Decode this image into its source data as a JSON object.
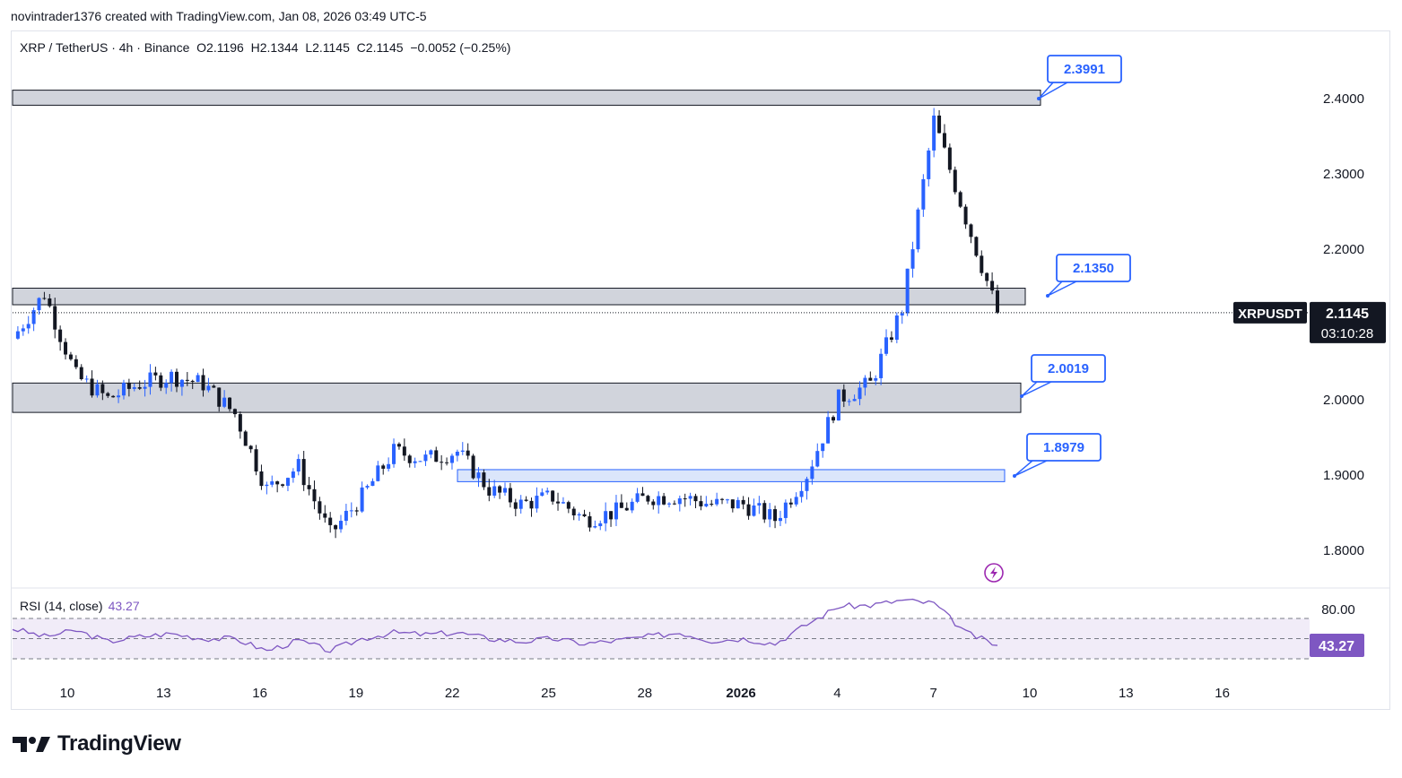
{
  "header": {
    "credit": "novintrader1376 created with TradingView.com, Jan 08, 2026 03:49 UTC-5"
  },
  "legend": {
    "symbol": "XRP / TetherUS · 4h · Binance",
    "open": "O2.1196",
    "high": "H2.1344",
    "low": "L2.1145",
    "close": "C2.1145",
    "change": "−0.0052 (−0.25%)"
  },
  "rsi": {
    "label": "RSI (14, close)",
    "value": "43.27",
    "axis_label": "80.00",
    "badge": "43.27"
  },
  "price_badge": {
    "symbol": "XRPUSDT",
    "price": "2.1145",
    "countdown": "03:10:28"
  },
  "footer": {
    "brand": "TradingView"
  },
  "colors": {
    "up": "#2962ff",
    "down": "#131722",
    "rsi": "#7e57c2",
    "zone": "#d1d4dc",
    "blue_zone": "#dbe6fb",
    "callout": "#2962ff"
  },
  "chart_data": {
    "type": "candlestick",
    "symbol": "XRPUSDT",
    "timeframe": "4h",
    "y_ticks": [
      "2.4000",
      "2.3000",
      "2.2000",
      "2.0000",
      "1.9000",
      "1.8000"
    ],
    "x_ticks": [
      "10",
      "13",
      "16",
      "19",
      "22",
      "25",
      "28",
      "2026",
      "4",
      "7",
      "10",
      "13",
      "16"
    ],
    "levels": [
      {
        "label": "2.3991",
        "low": 2.39,
        "high": 2.41
      },
      {
        "label": "2.1350",
        "low": 2.125,
        "high": 2.147
      },
      {
        "label": "2.0019",
        "low": 1.982,
        "high": 2.021
      },
      {
        "label": "1.8979",
        "low": 1.89,
        "high": 1.906
      }
    ],
    "last_price": 2.1145,
    "price_path": [
      [
        "Dec 8",
        2.08
      ],
      [
        "Dec 9",
        2.14
      ],
      [
        "Dec 10",
        2.03
      ],
      [
        "Dec 11",
        2.0
      ],
      [
        "Dec 12",
        2.02
      ],
      [
        "Dec 13",
        2.03
      ],
      [
        "Dec 14",
        2.02
      ],
      [
        "Dec 15",
        1.98
      ],
      [
        "Dec 16",
        1.88
      ],
      [
        "Dec 17",
        1.91
      ],
      [
        "Dec 18",
        1.82
      ],
      [
        "Dec 19",
        1.87
      ],
      [
        "Dec 20",
        1.93
      ],
      [
        "Dec 21",
        1.92
      ],
      [
        "Dec 22",
        1.93
      ],
      [
        "Dec 23",
        1.88
      ],
      [
        "Dec 24",
        1.86
      ],
      [
        "Dec 25",
        1.87
      ],
      [
        "Dec 26",
        1.84
      ],
      [
        "Dec 27",
        1.85
      ],
      [
        "Dec 28",
        1.87
      ],
      [
        "Dec 29",
        1.87
      ],
      [
        "Dec 30",
        1.86
      ],
      [
        "Dec 31",
        1.86
      ],
      [
        "Jan 1",
        1.84
      ],
      [
        "Jan 2",
        1.9
      ],
      [
        "Jan 3",
        2.0
      ],
      [
        "Jan 4",
        2.02
      ],
      [
        "Jan 5",
        2.12
      ],
      [
        "Jan 6",
        2.37
      ],
      [
        "Jan 7",
        2.24
      ],
      [
        "Jan 8",
        2.1145
      ]
    ],
    "rsi_path": [
      60,
      52,
      58,
      47,
      52,
      55,
      50,
      50,
      38,
      48,
      38,
      50,
      56,
      54,
      56,
      50,
      47,
      50,
      45,
      48,
      52,
      56,
      48,
      50,
      45,
      64,
      82,
      83,
      88,
      85,
      56,
      43.27
    ],
    "rsi_bands": [
      70,
      50,
      30
    ]
  }
}
